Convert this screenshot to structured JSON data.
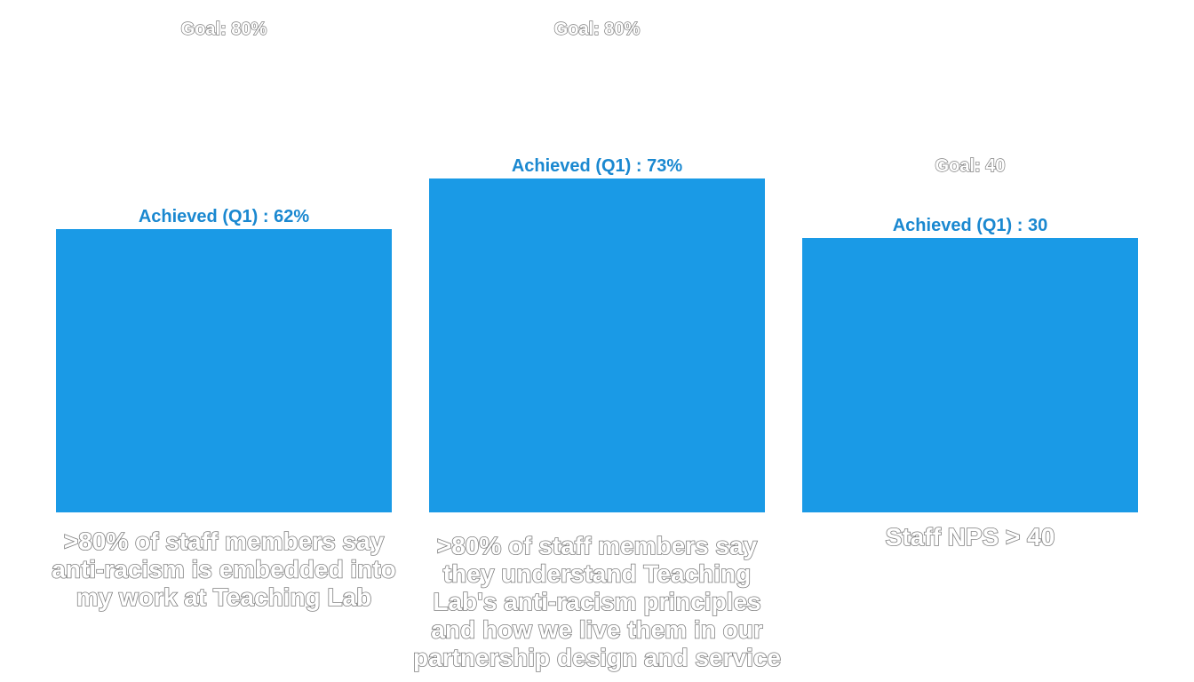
{
  "colors": {
    "bar": "#1a9ae6",
    "achieved_text": "#1a88d0",
    "goal_text_fill": "#ffffff",
    "goal_text_outline": "#7f7f7f"
  },
  "chart_data": {
    "type": "bar",
    "title": "",
    "xlabel": "",
    "ylabel": "",
    "grid": false,
    "legend": "none",
    "series": [
      {
        "values": [
          0.62,
          0.73,
          0.3
        ]
      }
    ],
    "goals": [
      0.8,
      0.8,
      0.4
    ],
    "categories": [
      ">80% of staff members say anti-racism is embedded into my work at Teaching Lab",
      ">80% of staff members say they understand Teaching Lab's anti-racism principles and how we live them in our partnership design and service",
      "Staff NPS > 40"
    ],
    "category_lines": [
      [
        ">80% of staff members say",
        "anti-racism is embedded into",
        "my work at Teaching Lab"
      ],
      [
        ">80% of staff members say",
        "they understand Teaching",
        "Lab's anti-racism principles",
        "and how we live them in our",
        "partnership design and service"
      ],
      [
        "Staff NPS > 40"
      ]
    ],
    "achieved_labels": [
      "Achieved (Q1) : 62%",
      "Achieved (Q1) : 73%",
      "Achieved (Q1) : 30"
    ],
    "goal_labels": [
      "Goal: 80%",
      "Goal: 80%",
      "Goal: 40"
    ]
  }
}
